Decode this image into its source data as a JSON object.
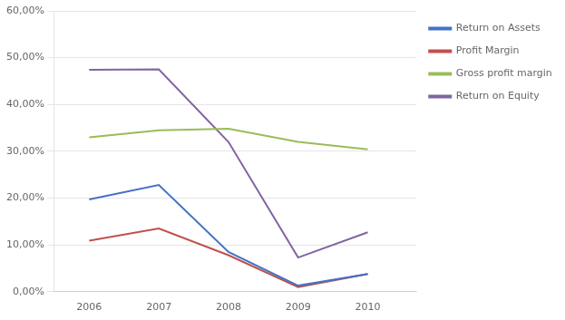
{
  "chart_data": {
    "type": "line",
    "x": [
      2006,
      2007,
      2008,
      2009,
      2010
    ],
    "xlim": [
      2005.5,
      2010.7
    ],
    "xticks": [
      2006,
      2007,
      2008,
      2009,
      2010
    ],
    "ylim": [
      0.0,
      0.6
    ],
    "yticks": [
      {
        "value": 0.0,
        "label": "0,00%"
      },
      {
        "value": 0.1,
        "label": "10,00%"
      },
      {
        "value": 0.2,
        "label": "20,00%"
      },
      {
        "value": 0.3,
        "label": "30,00%"
      },
      {
        "value": 0.4,
        "label": "40,00%"
      },
      {
        "value": 0.5,
        "label": "50,00%"
      },
      {
        "value": 0.6,
        "label": "60,00%"
      }
    ],
    "grid": "y",
    "legend": "right",
    "series": [
      {
        "name": "Return on Assets",
        "color": "#4472C4",
        "values": [
          0.197,
          0.228,
          0.085,
          0.013,
          0.038
        ]
      },
      {
        "name": "Profit Margin",
        "color": "#C0504D",
        "values": [
          0.109,
          0.135,
          0.078,
          0.01,
          0.038
        ]
      },
      {
        "name": "Gross profit margin",
        "color": "#9BBB59",
        "values": [
          0.33,
          0.345,
          0.348,
          0.32,
          0.304
        ]
      },
      {
        "name": "Return on Equity",
        "color": "#8064A2",
        "values": [
          0.474,
          0.475,
          0.32,
          0.073,
          0.127
        ]
      }
    ]
  }
}
